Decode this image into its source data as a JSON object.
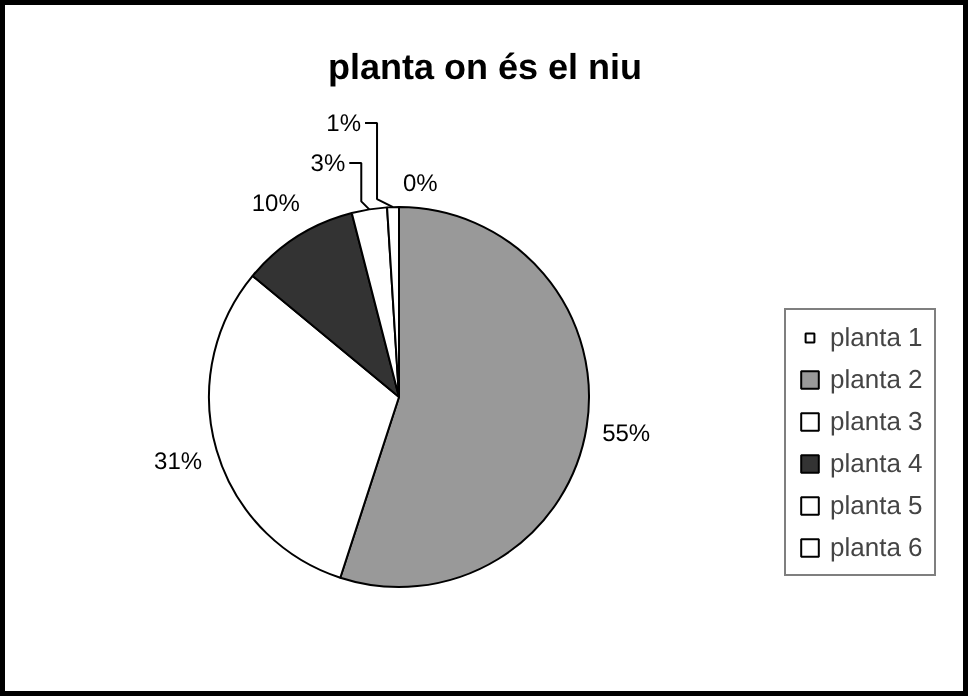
{
  "chart_data": {
    "type": "pie",
    "title": "planta on és el niu",
    "categories": [
      "planta 1",
      "planta 2",
      "planta 3",
      "planta 4",
      "planta 5",
      "planta 6"
    ],
    "values": [
      0,
      55,
      31,
      10,
      3,
      1
    ],
    "value_labels": [
      "0%",
      "55%",
      "31%",
      "10%",
      "3%",
      "1%"
    ],
    "colors": [
      "#ffffff",
      "#999999",
      "#ffffff",
      "#333333",
      "#ffffff",
      "#ffffff"
    ],
    "legend": "right"
  }
}
